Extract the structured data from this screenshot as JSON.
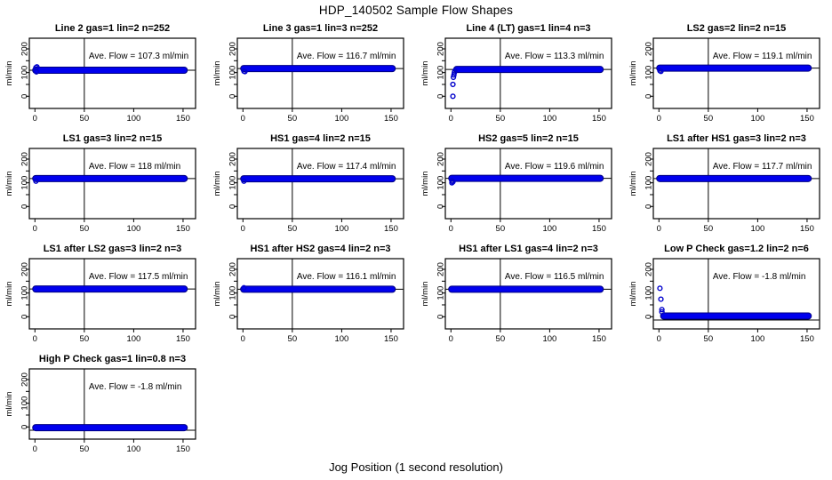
{
  "page_title": "HDP_140502  Sample Flow Shapes",
  "chart_data": {
    "type": "scatter",
    "title": "HDP_140502  Sample Flow Shapes",
    "xlabel": "Jog Position (1 second resolution)",
    "ylabel": "ml/min",
    "layout": {
      "rows": 4,
      "cols": 4,
      "legend": "none",
      "grid": false
    },
    "x_ticks": [
      0,
      50,
      100,
      150
    ],
    "y_ticks_labeled": [
      0,
      100,
      200
    ],
    "y_ticks_minor": [
      50,
      150
    ],
    "xlim": [
      -6,
      163
    ],
    "ylim": [
      -51,
      245
    ],
    "vline_x": 50,
    "point_color": "#0000EE",
    "point_edge_color": "#000080",
    "open_point_color": "#0000CC",
    "ref_line_color": "#000000",
    "subplots": [
      {
        "title": "Line 2 gas=1 lin=2 n=252",
        "ave_label": "Ave. Flow = 107.3 ml/min",
        "ave_flow": 107.3,
        "band": {
          "x0": 0,
          "x1": 152,
          "y": 110
        },
        "ref_line": 110,
        "extra_points": [
          [
            1,
            121
          ],
          [
            2,
            124
          ],
          [
            1.5,
            103
          ]
        ]
      },
      {
        "title": "Line 3 gas=1 lin=3 n=252",
        "ave_label": "Ave. Flow = 116.7 ml/min",
        "ave_flow": 116.7,
        "band": {
          "x0": 0,
          "x1": 152,
          "y": 117
        },
        "ref_line": 117,
        "extra_points": [
          [
            1,
            106
          ],
          [
            2,
            104
          ]
        ]
      },
      {
        "title": "Line 4 (LT) gas=1 lin=4 n=3",
        "ave_label": "Ave. Flow = 113.3 ml/min",
        "ave_flow": 113.3,
        "band": {
          "x0": 5,
          "x1": 152,
          "y": 113
        },
        "ref_line": 113,
        "extra_points": [
          [
            2,
            0
          ],
          [
            2,
            50
          ],
          [
            2.5,
            80
          ],
          [
            3,
            90
          ],
          [
            3.5,
            100
          ],
          [
            4,
            107
          ]
        ]
      },
      {
        "title": "LS2 gas=2 lin=2 n=15",
        "ave_label": "Ave. Flow = 119.1 ml/min",
        "ave_flow": 119.1,
        "band": {
          "x0": 0,
          "x1": 152,
          "y": 119
        },
        "ref_line": 119,
        "extra_points": [
          [
            1,
            108
          ],
          [
            2,
            105
          ]
        ]
      },
      {
        "title": "LS1 gas=3 lin=2 n=15",
        "ave_label": "Ave. Flow = 118 ml/min",
        "ave_flow": 118,
        "band": {
          "x0": 0,
          "x1": 152,
          "y": 118
        },
        "ref_line": 118,
        "extra_points": [
          [
            1,
            107
          ]
        ]
      },
      {
        "title": "HS1 gas=4 lin=2 n=15",
        "ave_label": "Ave. Flow = 117.4 ml/min",
        "ave_flow": 117.4,
        "band": {
          "x0": 0,
          "x1": 152,
          "y": 117
        },
        "ref_line": 117,
        "extra_points": [
          [
            1,
            107
          ]
        ]
      },
      {
        "title": "HS2 gas=5 lin=2 n=15",
        "ave_label": "Ave. Flow = 119.6 ml/min",
        "ave_flow": 119.6,
        "band": {
          "x0": 0,
          "x1": 152,
          "y": 119
        },
        "ref_line": 119,
        "extra_points": [
          [
            1,
            108
          ],
          [
            2,
            104
          ],
          [
            1,
            100
          ]
        ]
      },
      {
        "title": "LS1 after HS1 gas=3 lin=2 n=3",
        "ave_label": "Ave. Flow = 117.7 ml/min",
        "ave_flow": 117.7,
        "band": {
          "x0": 0,
          "x1": 152,
          "y": 118
        },
        "ref_line": 118,
        "extra_points": []
      },
      {
        "title": "LS1 after LS2 gas=3 lin=2 n=3",
        "ave_label": "Ave. Flow = 117.5 ml/min",
        "ave_flow": 117.5,
        "band": {
          "x0": 0,
          "x1": 152,
          "y": 117
        },
        "ref_line": 117,
        "extra_points": []
      },
      {
        "title": "HS1 after HS2 gas=4 lin=2 n=3",
        "ave_label": "Ave. Flow = 116.1 ml/min",
        "ave_flow": 116.1,
        "band": {
          "x0": 0,
          "x1": 152,
          "y": 116
        },
        "ref_line": 116,
        "extra_points": [
          [
            1,
            122
          ]
        ]
      },
      {
        "title": "HS1 after LS1 gas=4 lin=2 n=3",
        "ave_label": "Ave. Flow = 116.5 ml/min",
        "ave_flow": 116.5,
        "band": {
          "x0": 0,
          "x1": 152,
          "y": 116
        },
        "ref_line": 116,
        "extra_points": []
      },
      {
        "title": "Low P Check gas=1.2 lin=2 n=6",
        "ave_label": "Ave. Flow = -1.8 ml/min",
        "ave_flow": -1.8,
        "band": {
          "x0": 4,
          "x1": 152,
          "y": 3
        },
        "ref_line": -14,
        "extra_points": [
          [
            1,
            120
          ],
          [
            2,
            74
          ],
          [
            3,
            30
          ],
          [
            3,
            20
          ]
        ]
      },
      {
        "title": "High P Check gas=1 lin=0.8 n=3",
        "ave_label": "Ave. Flow = -1.8 ml/min",
        "ave_flow": -1.8,
        "band": {
          "x0": 0,
          "x1": 152,
          "y": -3
        },
        "ref_line": -14,
        "extra_points": []
      }
    ]
  }
}
